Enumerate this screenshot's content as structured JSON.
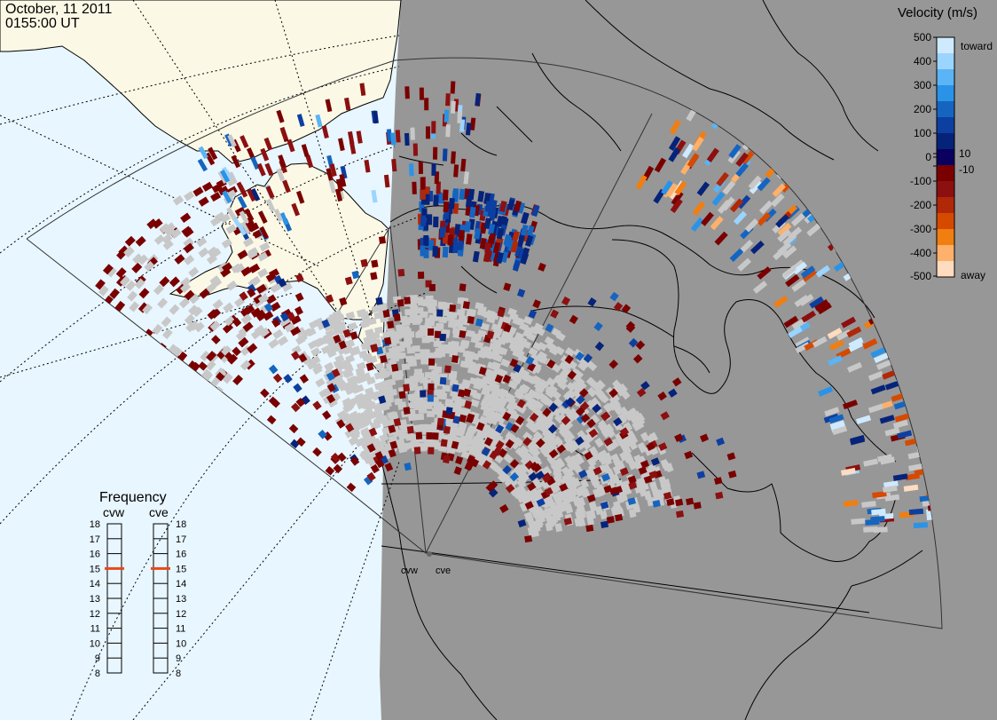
{
  "header": {
    "date": "October, 11 2011",
    "time": "0155:00 UT"
  },
  "colors": {
    "ocean": "#e8f6ff",
    "land": "#fbf9e6",
    "shade": "#979797",
    "ground_scatter": "#c8c8c8",
    "coast": "#000000"
  },
  "velocity_legend": {
    "title": "Velocity (m/s)",
    "ticks": [
      "500",
      "400",
      "300",
      "200",
      "100",
      "10",
      "0",
      "-10",
      "-100",
      "-200",
      "-300",
      "-400",
      "-500"
    ],
    "toward_label": "toward",
    "away_label": "away",
    "colors_top_to_bottom": [
      "#cfeaff",
      "#9bd4ff",
      "#5ab4f5",
      "#2a93e8",
      "#1565c0",
      "#0d3fa0",
      "#06237a",
      "#0a0060",
      "#7a0000",
      "#8c1010",
      "#b02808",
      "#d64a00",
      "#f07e10",
      "#ffb06a",
      "#ffdcc0"
    ]
  },
  "frequency_panel": {
    "title": "Frequency",
    "radars": [
      {
        "name": "cvw",
        "current_mhz": 15.0
      },
      {
        "name": "cve",
        "current_mhz": 15.0
      }
    ],
    "scale": [
      "18",
      "17",
      "16",
      "15",
      "14",
      "13",
      "12",
      "11",
      "10",
      "9",
      "8"
    ]
  },
  "sites": [
    {
      "label": "cvw"
    },
    {
      "label": "cve"
    }
  ]
}
